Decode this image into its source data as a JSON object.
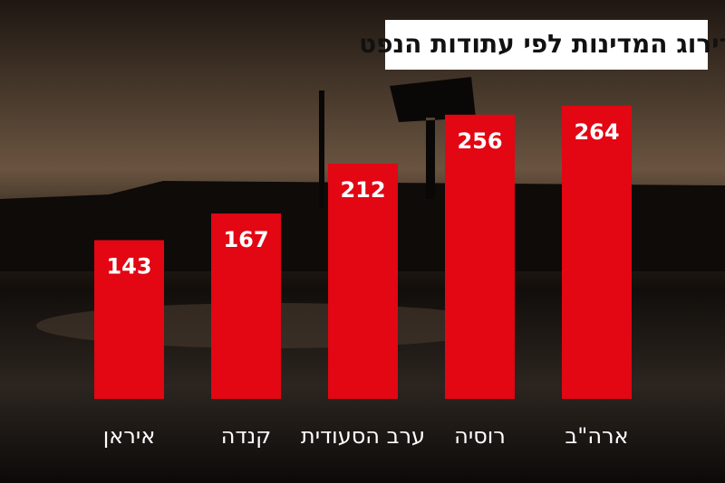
{
  "chart_data": {
    "type": "bar",
    "title": "דירוג המדינות לפי עתודות הנפט",
    "categories": [
      "איראן",
      "קנדה",
      "ערב הסעודית",
      "רוסיה",
      "ארה\"ב"
    ],
    "values": [
      143,
      167,
      212,
      256,
      264
    ],
    "color": "#e30613"
  }
}
